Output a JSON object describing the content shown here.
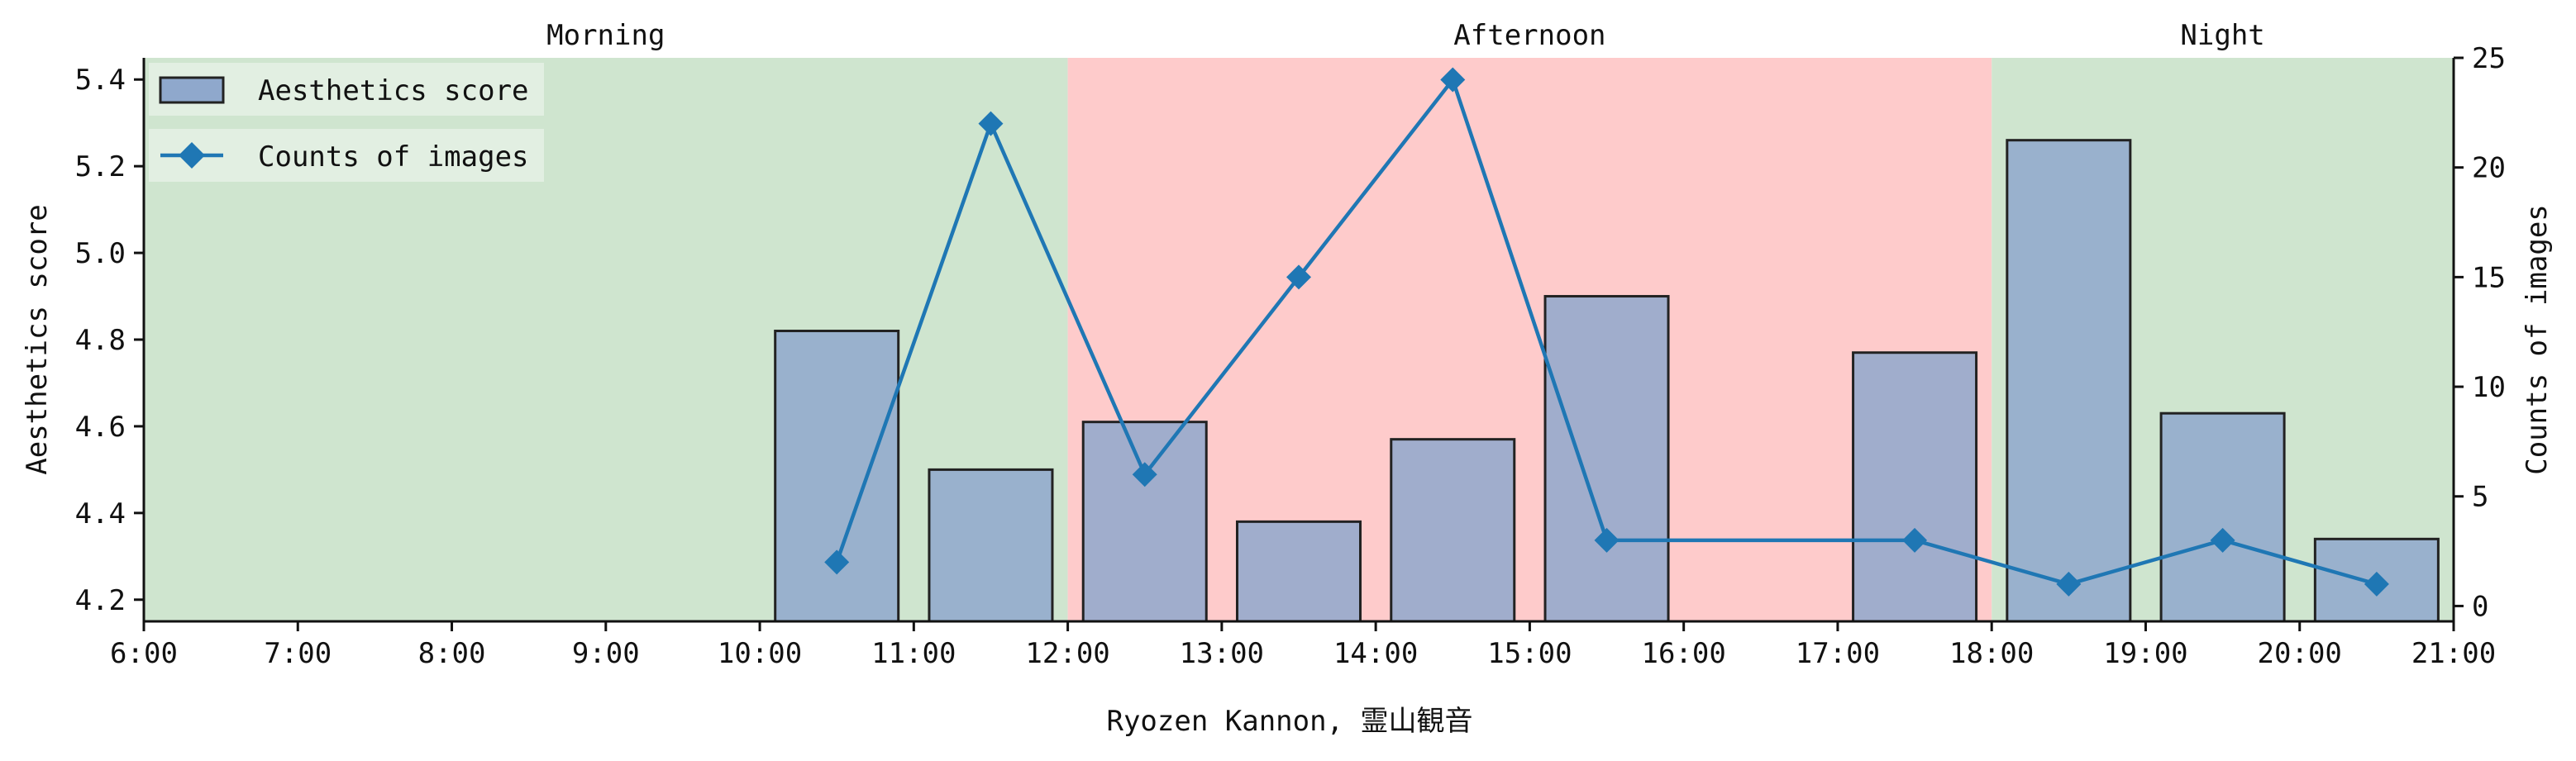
{
  "chart_data": {
    "type": "bar+line",
    "xlabel": "Ryozen Kannon, 霊山観音",
    "ylabel_left": "Aesthetics score",
    "ylabel_right": "Counts of images",
    "x_ticks": [
      "6:00",
      "7:00",
      "8:00",
      "9:00",
      "10:00",
      "11:00",
      "12:00",
      "13:00",
      "14:00",
      "15:00",
      "16:00",
      "17:00",
      "18:00",
      "19:00",
      "20:00",
      "21:00"
    ],
    "xlim": [
      6,
      21
    ],
    "ylim_left": [
      4.15,
      5.45
    ],
    "y_ticks_left": [
      "4.2",
      "4.4",
      "4.6",
      "4.8",
      "5.0",
      "5.2",
      "5.4"
    ],
    "ylim_right": [
      -0.7,
      25
    ],
    "y_ticks_right": [
      "0",
      "5",
      "10",
      "15",
      "20",
      "25"
    ],
    "periods": [
      {
        "label": "Morning",
        "start": 6,
        "end": 12,
        "color": "#cfe5cf"
      },
      {
        "label": "Afternoon",
        "start": 12,
        "end": 18,
        "color": "#fecbcb"
      },
      {
        "label": "Night",
        "start": 18,
        "end": 21,
        "color": "#cfe5cf"
      }
    ],
    "series": [
      {
        "name": "Aesthetics score",
        "kind": "bar",
        "color": "#8fa8cc",
        "x": [
          10.5,
          11.5,
          12.5,
          13.5,
          14.5,
          15.5,
          17.5,
          18.5,
          19.5,
          20.5
        ],
        "values": [
          4.82,
          4.5,
          4.61,
          4.38,
          4.57,
          4.9,
          4.77,
          5.26,
          4.63,
          4.34
        ]
      },
      {
        "name": "Counts of images",
        "kind": "line",
        "color": "#1f77b4",
        "marker": "diamond",
        "x": [
          10.5,
          11.5,
          12.5,
          13.5,
          14.5,
          15.5,
          17.5,
          18.5,
          19.5,
          20.5
        ],
        "values": [
          2,
          22,
          6,
          15,
          24,
          3,
          3,
          1,
          3,
          1
        ]
      }
    ],
    "legend_position": "upper-left",
    "grid": false
  }
}
